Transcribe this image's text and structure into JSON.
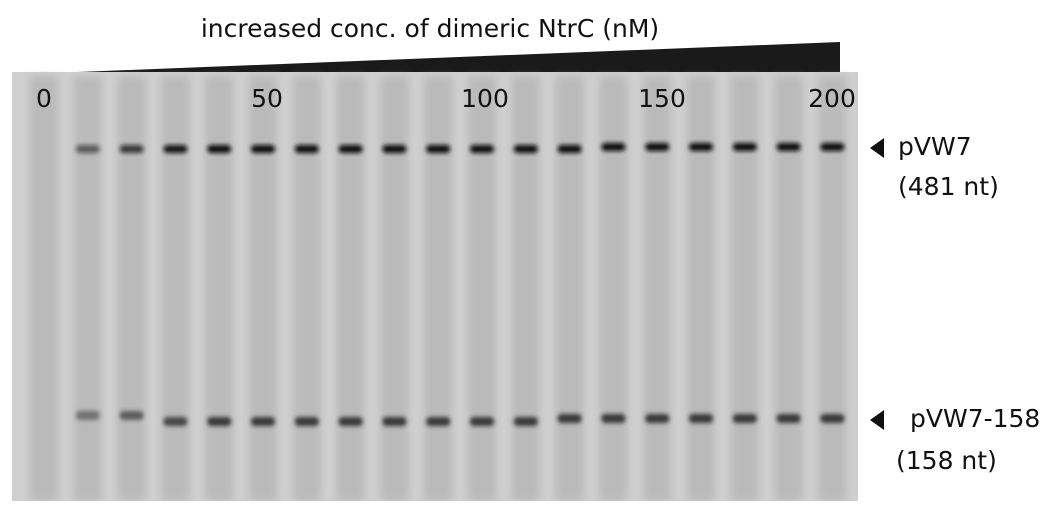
{
  "header": {
    "title": "increased conc. of dimeric NtrC (nM)"
  },
  "lane_labels": [
    "0",
    "50",
    "100",
    "150",
    "200"
  ],
  "bands": [
    {
      "name": "pVW7",
      "size": "(481 nt)"
    },
    {
      "name": "pVW7-158",
      "size": "(158 nt)"
    }
  ]
}
